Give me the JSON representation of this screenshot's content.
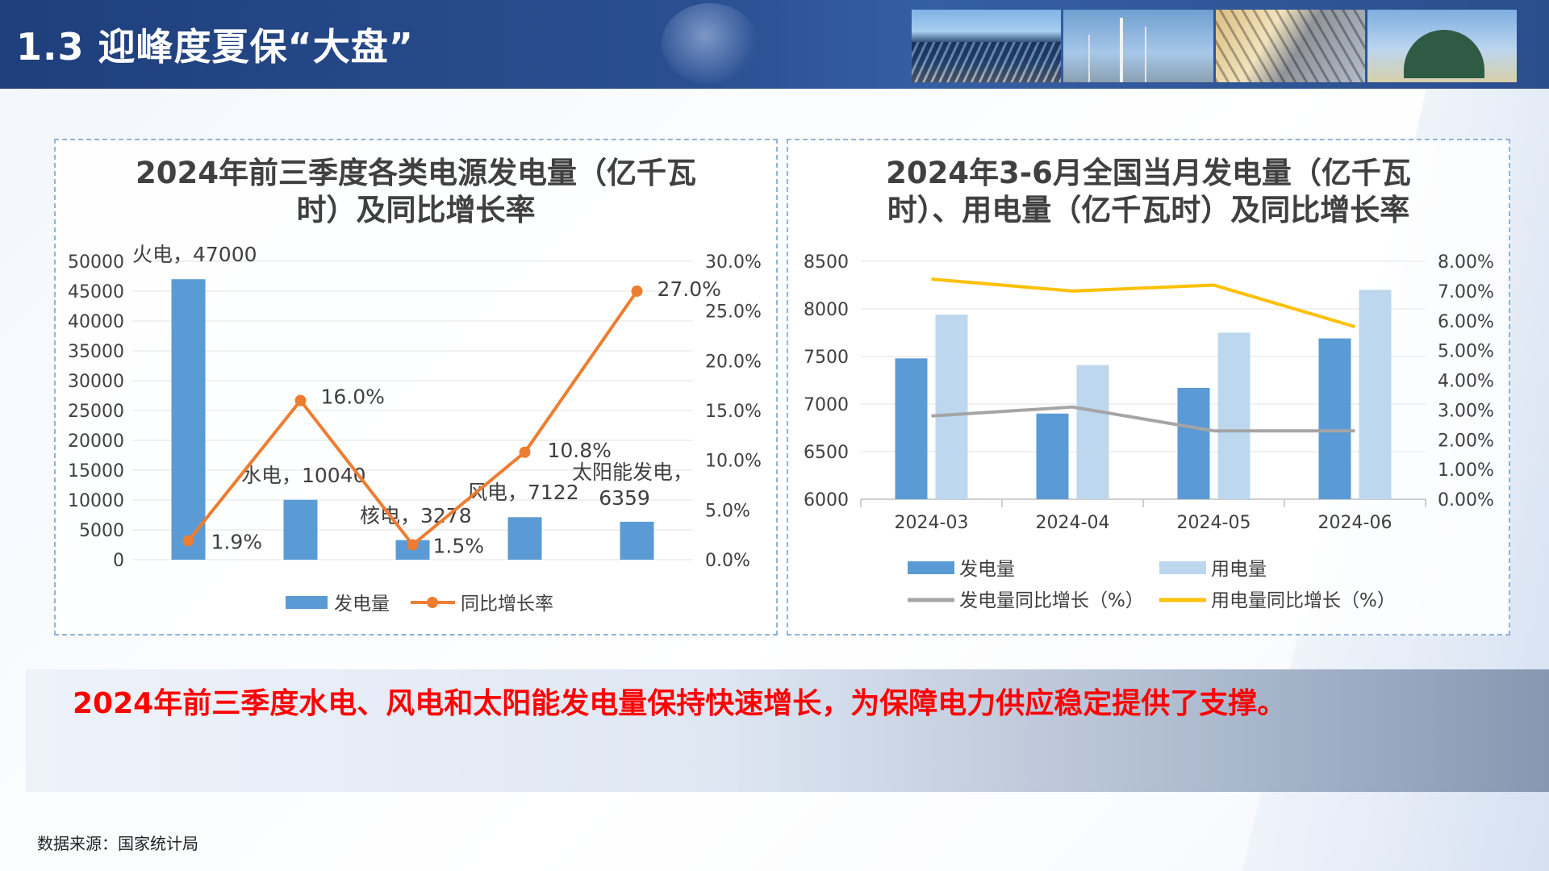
{
  "header": {
    "title": "1.3 迎峰度夏保“大盘”"
  },
  "summary": {
    "text": "2024年前三季度水电、风电和太阳能发电量保持快速增长，为保障电力供应稳定提供了支撑。"
  },
  "source": {
    "text": "数据来源：国家统计局"
  },
  "colors": {
    "bar": "#5b9bd5",
    "bar_light": "#bdd7ee",
    "line_orange": "#ed7d31",
    "line_gray": "#a5a5a5",
    "line_yellow": "#ffc000"
  },
  "chart_data": [
    {
      "type": "bar",
      "title_lines": [
        "2024年前三季度各类电源发电量（亿千瓦",
        "时）及同比增长率"
      ],
      "categories": [
        "火电",
        "水电",
        "核电",
        "风电",
        "太阳能发电"
      ],
      "series": [
        {
          "name": "发电量",
          "type": "bar",
          "axis": "left",
          "values": [
            47000,
            10040,
            3278,
            7122,
            6359
          ]
        },
        {
          "name": "同比增长率",
          "type": "line",
          "axis": "right",
          "values": [
            1.9,
            16.0,
            1.5,
            10.8,
            27.0
          ]
        }
      ],
      "y_left": {
        "min": 0,
        "max": 50000,
        "step": 5000,
        "ticks": [
          "0",
          "5000",
          "10000",
          "15000",
          "20000",
          "25000",
          "30000",
          "35000",
          "40000",
          "45000",
          "50000"
        ]
      },
      "y_right": {
        "min": 0,
        "max": 30,
        "step": 5,
        "ticks": [
          "0.0%",
          "5.0%",
          "10.0%",
          "15.0%",
          "20.0%",
          "25.0%",
          "30.0%"
        ]
      },
      "bar_labels": [
        "火电，47000",
        "水电，10040",
        "核电，3278",
        "风电，7122",
        "太阳能发电，",
        "6359"
      ],
      "line_labels": [
        "1.9%",
        "16.0%",
        "1.5%",
        "10.8%",
        "27.0%"
      ],
      "legend": [
        "发电量",
        "同比增长率"
      ],
      "legend_position": "bottom",
      "grid": true
    },
    {
      "type": "bar",
      "title_lines": [
        "2024年3-6月全国当月发电量（亿千瓦",
        "时）、用电量（亿千瓦时）及同比增长率"
      ],
      "categories": [
        "2024-03",
        "2024-04",
        "2024-05",
        "2024-06"
      ],
      "series": [
        {
          "name": "发电量",
          "type": "bar",
          "axis": "left",
          "values": [
            7480,
            6900,
            7170,
            7690
          ]
        },
        {
          "name": "用电量",
          "type": "bar",
          "axis": "left",
          "values": [
            7940,
            7410,
            7750,
            8200
          ]
        },
        {
          "name": "发电量同比增长（%）",
          "type": "line",
          "axis": "right",
          "values": [
            2.8,
            3.1,
            2.3,
            2.3
          ]
        },
        {
          "name": "用电量同比增长（%）",
          "type": "line",
          "axis": "right",
          "values": [
            7.4,
            7.0,
            7.2,
            5.8
          ]
        }
      ],
      "y_left": {
        "min": 6000,
        "max": 8500,
        "step": 500,
        "ticks": [
          "6000",
          "6500",
          "7000",
          "7500",
          "8000",
          "8500"
        ]
      },
      "y_right": {
        "min": 0,
        "max": 8,
        "step": 1,
        "ticks": [
          "0.00%",
          "1.00%",
          "2.00%",
          "3.00%",
          "4.00%",
          "5.00%",
          "6.00%",
          "7.00%",
          "8.00%"
        ]
      },
      "legend": [
        "发电量",
        "用电量",
        "发电量同比增长（%）",
        "用电量同比增长（%）"
      ],
      "legend_position": "bottom",
      "grid": true
    }
  ]
}
